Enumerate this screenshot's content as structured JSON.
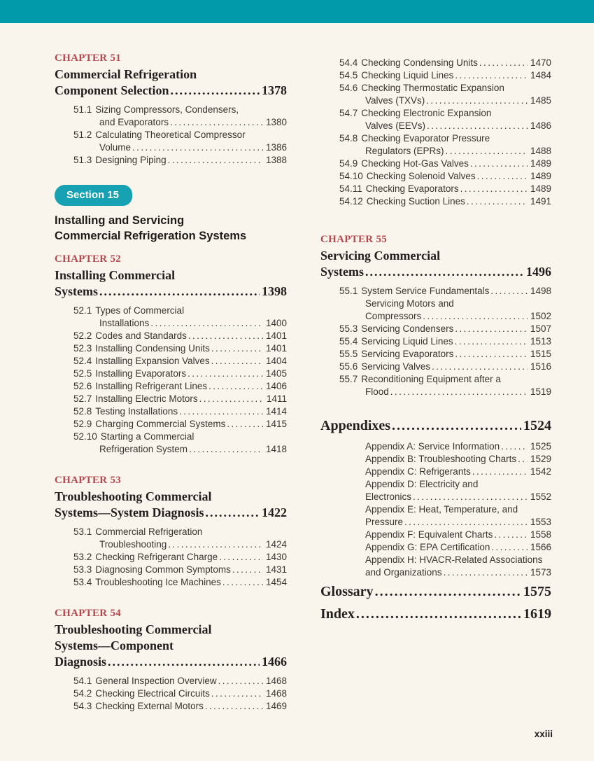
{
  "page": {
    "folio": "xxiii"
  },
  "colors": {
    "top_bar_teal": "#009aab",
    "section_badge_teal": "#17a2b3",
    "chapter_label_red": "#b5484f",
    "background_cream": "#faf5ec"
  },
  "toc": {
    "left_column": [
      {
        "type": "chapter",
        "label": "CHAPTER 51",
        "title_lines": [
          "Commercial Refrigeration",
          "Component Selection"
        ],
        "page": "1378",
        "entries": [
          {
            "num": "51.1",
            "lines": [
              "Sizing Compressors, Condensers,",
              "and Evaporators"
            ],
            "page": "1380"
          },
          {
            "num": "51.2",
            "lines": [
              "Calculating Theoretical Compressor",
              "Volume"
            ],
            "page": "1386"
          },
          {
            "num": "51.3",
            "lines": [
              "Designing Piping"
            ],
            "page": "1388"
          }
        ]
      },
      {
        "type": "section",
        "badge": "Section 15",
        "title_lines": [
          "Installing and Servicing",
          "Commercial Refrigeration Systems"
        ]
      },
      {
        "type": "chapter",
        "label": "CHAPTER 52",
        "title_lines": [
          "Installing Commercial",
          "Systems"
        ],
        "page": "1398",
        "entries": [
          {
            "num": "52.1",
            "lines": [
              "Types of Commercial",
              "Installations"
            ],
            "page": "1400"
          },
          {
            "num": "52.2",
            "lines": [
              "Codes and Standards"
            ],
            "page": "1401"
          },
          {
            "num": "52.3",
            "lines": [
              "Installing Condensing Units"
            ],
            "page": "1401"
          },
          {
            "num": "52.4",
            "lines": [
              "Installing Expansion Valves"
            ],
            "page": "1404"
          },
          {
            "num": "52.5",
            "lines": [
              "Installing Evaporators"
            ],
            "page": "1405"
          },
          {
            "num": "52.6",
            "lines": [
              "Installing Refrigerant Lines"
            ],
            "page": "1406"
          },
          {
            "num": "52.7",
            "lines": [
              "Installing Electric Motors"
            ],
            "page": "1411"
          },
          {
            "num": "52.8",
            "lines": [
              "Testing Installations"
            ],
            "page": "1414"
          },
          {
            "num": "52.9",
            "lines": [
              "Charging Commercial Systems"
            ],
            "page": "1415"
          },
          {
            "num": "52.10",
            "lines": [
              "Starting a Commercial",
              "Refrigeration System"
            ],
            "page": "1418"
          }
        ]
      },
      {
        "type": "chapter",
        "label": "CHAPTER 53",
        "title_lines": [
          "Troubleshooting Commercial",
          "Systems—System Diagnosis"
        ],
        "page": "1422",
        "entries": [
          {
            "num": "53.1",
            "lines": [
              "Commercial Refrigeration",
              "Troubleshooting"
            ],
            "page": "1424"
          },
          {
            "num": "53.2",
            "lines": [
              "Checking Refrigerant Charge"
            ],
            "page": "1430"
          },
          {
            "num": "53.3",
            "lines": [
              "Diagnosing Common Symptoms"
            ],
            "page": "1431"
          },
          {
            "num": "53.4",
            "lines": [
              "Troubleshooting Ice Machines"
            ],
            "page": "1454"
          }
        ]
      },
      {
        "type": "chapter",
        "label": "CHAPTER 54",
        "title_lines": [
          "Troubleshooting Commercial",
          "Systems—Component",
          "Diagnosis"
        ],
        "page": "1466",
        "entries": [
          {
            "num": "54.1",
            "lines": [
              "General Inspection Overview"
            ],
            "page": "1468"
          },
          {
            "num": "54.2",
            "lines": [
              "Checking Electrical Circuits"
            ],
            "page": "1468"
          },
          {
            "num": "54.3",
            "lines": [
              "Checking External Motors"
            ],
            "page": "1469"
          }
        ]
      }
    ],
    "right_column": [
      {
        "type": "entries",
        "entries": [
          {
            "num": "54.4",
            "lines": [
              "Checking Condensing Units"
            ],
            "page": "1470"
          },
          {
            "num": "54.5",
            "lines": [
              "Checking Liquid Lines"
            ],
            "page": "1484"
          },
          {
            "num": "54.6",
            "lines": [
              "Checking Thermostatic Expansion",
              "Valves (TXVs)"
            ],
            "page": "1485"
          },
          {
            "num": "54.7",
            "lines": [
              "Checking Electronic Expansion",
              "Valves (EEVs)"
            ],
            "page": "1486"
          },
          {
            "num": "54.8",
            "lines": [
              "Checking Evaporator Pressure",
              "Regulators (EPRs)"
            ],
            "page": "1488"
          },
          {
            "num": "54.9",
            "lines": [
              "Checking Hot-Gas Valves"
            ],
            "page": "1489"
          },
          {
            "num": "54.10",
            "lines": [
              "Checking Solenoid Valves"
            ],
            "page": "1489"
          },
          {
            "num": "54.11",
            "lines": [
              "Checking Evaporators"
            ],
            "page": "1489"
          },
          {
            "num": "54.12",
            "lines": [
              "Checking Suction Lines"
            ],
            "page": "1491"
          }
        ]
      },
      {
        "type": "chapter",
        "label": "CHAPTER 55",
        "title_lines": [
          "Servicing Commercial",
          "Systems"
        ],
        "page": "1496",
        "entries": [
          {
            "num": "55.1",
            "lines": [
              "System Service Fundamentals"
            ],
            "page": "1498"
          },
          {
            "num": "",
            "lines": [
              "Servicing Motors and",
              "Compressors"
            ],
            "page": "1502"
          },
          {
            "num": "55.3",
            "lines": [
              "Servicing Condensers"
            ],
            "page": "1507"
          },
          {
            "num": "55.4",
            "lines": [
              "Servicing Liquid Lines"
            ],
            "page": "1513"
          },
          {
            "num": "55.5",
            "lines": [
              "Servicing Evaporators"
            ],
            "page": "1515"
          },
          {
            "num": "55.6",
            "lines": [
              "Servicing Valves"
            ],
            "page": "1516"
          },
          {
            "num": "55.7",
            "lines": [
              "Reconditioning Equipment after a",
              "Flood"
            ],
            "page": "1519"
          }
        ]
      },
      {
        "type": "backmatter",
        "title": "Appendixes",
        "page": "1524",
        "entries": [
          {
            "num": "",
            "lines": [
              "Appendix A: Service Information"
            ],
            "page": "1525"
          },
          {
            "num": "",
            "lines": [
              "Appendix B: Troubleshooting Charts"
            ],
            "page": "1529"
          },
          {
            "num": "",
            "lines": [
              "Appendix C: Refrigerants"
            ],
            "page": "1542"
          },
          {
            "num": "",
            "lines": [
              "Appendix D: Electricity and",
              "Electronics"
            ],
            "page": "1552"
          },
          {
            "num": "",
            "lines": [
              "Appendix E: Heat, Temperature, and",
              "Pressure"
            ],
            "page": "1553"
          },
          {
            "num": "",
            "lines": [
              "Appendix F: Equivalent Charts"
            ],
            "page": "1558"
          },
          {
            "num": "",
            "lines": [
              "Appendix G: EPA Certification"
            ],
            "page": "1566"
          },
          {
            "num": "",
            "lines": [
              "Appendix H: HVACR-Related Associations",
              "and Organizations"
            ],
            "page": "1573"
          }
        ]
      },
      {
        "type": "backmatter",
        "title": "Glossary",
        "page": "1575",
        "entries": []
      },
      {
        "type": "backmatter",
        "title": "Index",
        "page": "1619",
        "entries": []
      }
    ]
  }
}
